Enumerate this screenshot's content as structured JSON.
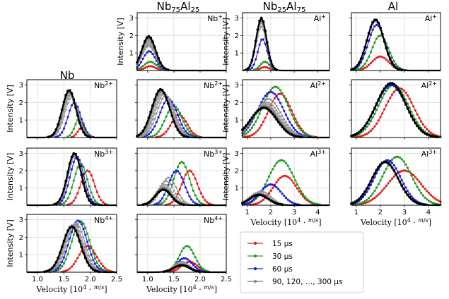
{
  "figure": {
    "columns": [
      "Nb",
      "Nb₇₅Al₂₅",
      "Nb₂₅Al₇₅",
      "Al"
    ],
    "column_titles": [
      {
        "base": "Nb",
        "parts": []
      },
      {
        "base": "Nb",
        "parts": [
          {
            "sub": "75"
          },
          {
            "txt": "Al"
          },
          {
            "sub": "25"
          }
        ]
      },
      {
        "base": "Nb",
        "parts": [
          {
            "sub": "25"
          },
          {
            "txt": "Al"
          },
          {
            "sub": "75"
          }
        ]
      },
      {
        "base": "Al",
        "parts": []
      }
    ],
    "ylabel": "Intensity [V]",
    "xlabel": "Velocity [10⁴ · m/s]",
    "xlabel_parts": {
      "pre": "Velocity [10",
      "exp": "4",
      "mid": " · ",
      "num": "m",
      "den": "s",
      "post": "]"
    },
    "y_ticks": [
      "1",
      "2",
      "3"
    ],
    "x_ticks_nb": [
      "1.0",
      "1.5",
      "2.0",
      "2.5"
    ],
    "x_ticks_al": [
      "1",
      "2",
      "3",
      "4"
    ]
  },
  "legend": {
    "items": [
      {
        "label": "15 µs",
        "color": "#e8191b"
      },
      {
        "label": "30 µs",
        "color": "#239b23"
      },
      {
        "label": "60 µs",
        "color": "#1d1de0"
      },
      {
        "label": "90, 120, …, 300 µs",
        "color": "#8c8c8c"
      }
    ]
  },
  "chart_data": {
    "type": "line",
    "ylim": [
      0,
      3.3
    ],
    "grid": true,
    "series_names": [
      "15 µs",
      "30 µs",
      "60 µs",
      "90 µs",
      "120 µs",
      "150 µs",
      "180 µs",
      "210 µs",
      "240 µs",
      "270 µs",
      "300 µs"
    ],
    "panels": [
      {
        "id": "nbal75-1",
        "column": 1,
        "row": 0,
        "label": "Nb",
        "charge": "+",
        "xlim": [
          0.8,
          2.5
        ],
        "peaks": [
          [
            1.05,
            0.1,
            0.25
          ],
          [
            1.05,
            0.12,
            0.5
          ],
          [
            1.03,
            0.12,
            1.1
          ],
          [
            1.02,
            0.13,
            1.4
          ],
          [
            1.02,
            0.13,
            1.5
          ],
          [
            1.02,
            0.13,
            1.6
          ],
          [
            1.02,
            0.13,
            1.7
          ],
          [
            1.02,
            0.13,
            1.8
          ],
          [
            1.02,
            0.13,
            1.85
          ],
          [
            1.02,
            0.13,
            1.9
          ],
          [
            1.02,
            0.13,
            1.95
          ]
        ]
      },
      {
        "id": "nb25al-1",
        "column": 2,
        "row": 0,
        "label": "Al",
        "charge": "+",
        "xlim": [
          0.8,
          4.5
        ],
        "peaks": [
          [
            1.75,
            0.18,
            0.2
          ],
          [
            1.75,
            0.2,
            0.5
          ],
          [
            1.65,
            0.2,
            1.8
          ],
          [
            1.6,
            0.22,
            2.5
          ],
          [
            1.6,
            0.22,
            2.7
          ],
          [
            1.6,
            0.22,
            2.8
          ],
          [
            1.6,
            0.22,
            2.85
          ],
          [
            1.6,
            0.22,
            2.9
          ],
          [
            1.6,
            0.22,
            2.95
          ],
          [
            1.6,
            0.22,
            2.95
          ],
          [
            1.6,
            0.22,
            3.0
          ]
        ]
      },
      {
        "id": "al-1",
        "column": 3,
        "row": 0,
        "label": "Al",
        "charge": "+",
        "xlim": [
          0.8,
          4.5
        ],
        "peaks": [
          [
            2.0,
            0.35,
            0.8
          ],
          [
            2.0,
            0.35,
            2.0
          ],
          [
            1.85,
            0.35,
            2.6
          ],
          [
            1.8,
            0.35,
            2.8
          ],
          [
            1.8,
            0.35,
            2.85
          ],
          [
            1.8,
            0.35,
            2.85
          ],
          [
            1.8,
            0.35,
            2.9
          ],
          [
            1.8,
            0.35,
            2.9
          ],
          [
            1.8,
            0.35,
            2.9
          ],
          [
            1.8,
            0.35,
            2.9
          ],
          [
            1.8,
            0.35,
            2.9
          ]
        ]
      },
      {
        "id": "nb-2",
        "column": 0,
        "row": 1,
        "label": "Nb",
        "charge": "2+",
        "xlim": [
          0.8,
          2.5
        ],
        "peaks": [
          [
            1.85,
            0.08,
            0.6
          ],
          [
            1.8,
            0.09,
            1.1
          ],
          [
            1.7,
            0.12,
            2.0
          ],
          [
            1.65,
            0.13,
            2.3
          ],
          [
            1.63,
            0.13,
            2.4
          ],
          [
            1.62,
            0.13,
            2.5
          ],
          [
            1.62,
            0.13,
            2.55
          ],
          [
            1.61,
            0.13,
            2.6
          ],
          [
            1.6,
            0.13,
            2.65
          ],
          [
            1.6,
            0.13,
            2.65
          ],
          [
            1.6,
            0.13,
            2.7
          ]
        ]
      },
      {
        "id": "nbal75-2",
        "column": 1,
        "row": 1,
        "label": "Nb",
        "charge": "2+",
        "xlim": [
          0.8,
          2.5
        ],
        "peaks": [
          [
            1.6,
            0.15,
            1.3
          ],
          [
            1.5,
            0.16,
            1.8
          ],
          [
            1.4,
            0.17,
            2.2
          ],
          [
            1.35,
            0.17,
            2.4
          ],
          [
            1.32,
            0.17,
            2.5
          ],
          [
            1.3,
            0.17,
            2.55
          ],
          [
            1.28,
            0.17,
            2.6
          ],
          [
            1.27,
            0.17,
            2.65
          ],
          [
            1.26,
            0.17,
            2.7
          ],
          [
            1.25,
            0.17,
            2.7
          ],
          [
            1.25,
            0.17,
            2.75
          ]
        ]
      },
      {
        "id": "nb25al-2",
        "column": 2,
        "row": 1,
        "label": "Al",
        "charge": "2+",
        "xlim": [
          0.8,
          4.5
        ],
        "peaks": [
          [
            2.4,
            0.5,
            2.5
          ],
          [
            2.2,
            0.55,
            2.9
          ],
          [
            2.0,
            0.55,
            2.6
          ],
          [
            1.9,
            0.55,
            2.2
          ],
          [
            1.85,
            0.55,
            2.0
          ],
          [
            1.8,
            0.55,
            1.9
          ],
          [
            1.8,
            0.55,
            1.8
          ],
          [
            1.75,
            0.55,
            1.8
          ],
          [
            1.75,
            0.55,
            1.75
          ],
          [
            1.75,
            0.55,
            1.7
          ],
          [
            1.7,
            0.55,
            1.7
          ]
        ]
      },
      {
        "id": "al-2",
        "column": 3,
        "row": 1,
        "label": "Al",
        "charge": "2+",
        "xlim": [
          0.8,
          4.5
        ],
        "peaks": [
          [
            2.8,
            0.6,
            2.8
          ],
          [
            2.55,
            0.62,
            3.0
          ],
          [
            2.45,
            0.62,
            3.0
          ],
          [
            2.45,
            0.62,
            3.1
          ],
          [
            2.45,
            0.62,
            3.1
          ],
          [
            2.45,
            0.62,
            3.1
          ],
          [
            2.45,
            0.62,
            3.1
          ],
          [
            2.45,
            0.62,
            3.1
          ],
          [
            2.45,
            0.62,
            3.1
          ],
          [
            2.45,
            0.62,
            3.1
          ],
          [
            2.45,
            0.62,
            3.1
          ]
        ]
      },
      {
        "id": "nb-3",
        "column": 0,
        "row": 2,
        "label": "Nb",
        "charge": "3+",
        "xlim": [
          0.8,
          2.5
        ],
        "peaks": [
          [
            1.95,
            0.13,
            2.0
          ],
          [
            1.82,
            0.13,
            2.4
          ],
          [
            1.75,
            0.13,
            2.8
          ],
          [
            1.72,
            0.13,
            2.9
          ],
          [
            1.71,
            0.13,
            2.95
          ],
          [
            1.7,
            0.13,
            3.0
          ],
          [
            1.7,
            0.13,
            3.0
          ],
          [
            1.7,
            0.13,
            3.0
          ],
          [
            1.7,
            0.13,
            3.0
          ],
          [
            1.7,
            0.13,
            3.0
          ],
          [
            1.7,
            0.13,
            3.0
          ]
        ]
      },
      {
        "id": "nbal75-3",
        "column": 1,
        "row": 2,
        "label": "Nb",
        "charge": "3+",
        "xlim": [
          0.8,
          2.5
        ],
        "peaks": [
          [
            1.8,
            0.15,
            2.0
          ],
          [
            1.65,
            0.15,
            2.5
          ],
          [
            1.55,
            0.15,
            2.0
          ],
          [
            1.4,
            0.15,
            1.6
          ],
          [
            1.35,
            0.15,
            1.4
          ],
          [
            1.32,
            0.15,
            1.2
          ],
          [
            1.3,
            0.15,
            1.1
          ],
          [
            1.3,
            0.15,
            1.0
          ],
          [
            1.3,
            0.15,
            1.0
          ],
          [
            1.3,
            0.15,
            0.9
          ],
          [
            1.3,
            0.15,
            0.9
          ]
        ]
      },
      {
        "id": "nb25al-3",
        "column": 2,
        "row": 2,
        "label": "Al",
        "charge": "3+",
        "xlim": [
          0.8,
          4.5
        ],
        "peaks": [
          [
            2.6,
            0.5,
            1.7
          ],
          [
            2.45,
            0.55,
            2.6
          ],
          [
            2.0,
            0.45,
            1.2
          ],
          [
            1.6,
            0.4,
            0.8
          ],
          [
            1.5,
            0.4,
            0.75
          ],
          [
            1.5,
            0.4,
            0.7
          ],
          [
            1.5,
            0.4,
            0.7
          ],
          [
            1.5,
            0.4,
            0.65
          ],
          [
            1.5,
            0.4,
            0.65
          ],
          [
            1.5,
            0.4,
            0.6
          ],
          [
            1.5,
            0.4,
            0.6
          ]
        ]
      },
      {
        "id": "al-3",
        "column": 3,
        "row": 2,
        "label": "Al",
        "charge": "3+",
        "xlim": [
          0.8,
          4.5
        ],
        "peaks": [
          [
            3.0,
            0.7,
            2.0
          ],
          [
            2.7,
            0.6,
            2.8
          ],
          [
            2.3,
            0.55,
            2.6
          ],
          [
            2.2,
            0.55,
            2.5
          ],
          [
            2.2,
            0.55,
            2.5
          ],
          [
            2.2,
            0.55,
            2.5
          ],
          [
            2.2,
            0.55,
            2.5
          ],
          [
            2.2,
            0.55,
            2.5
          ],
          [
            2.2,
            0.55,
            2.5
          ],
          [
            2.2,
            0.55,
            2.5
          ],
          [
            2.2,
            0.55,
            2.5
          ]
        ]
      },
      {
        "id": "nb-4",
        "column": 0,
        "row": 3,
        "label": "Nb",
        "charge": "4+",
        "xlim": [
          0.8,
          2.5
        ],
        "peaks": [
          [
            1.95,
            0.17,
            1.5
          ],
          [
            1.82,
            0.17,
            2.9
          ],
          [
            1.77,
            0.17,
            2.95
          ],
          [
            1.73,
            0.17,
            2.8
          ],
          [
            1.7,
            0.17,
            2.75
          ],
          [
            1.68,
            0.17,
            2.7
          ],
          [
            1.67,
            0.17,
            2.7
          ],
          [
            1.66,
            0.17,
            2.65
          ],
          [
            1.65,
            0.17,
            2.65
          ],
          [
            1.65,
            0.17,
            2.6
          ],
          [
            1.65,
            0.17,
            2.6
          ]
        ]
      },
      {
        "id": "nbal75-4",
        "column": 1,
        "row": 3,
        "label": "Nb",
        "charge": "4+",
        "xlim": [
          0.8,
          2.5
        ],
        "peaks": [
          [
            1.8,
            0.15,
            0.6
          ],
          [
            1.75,
            0.15,
            1.5
          ],
          [
            1.7,
            0.15,
            0.8
          ],
          [
            1.65,
            0.15,
            0.6
          ],
          [
            1.65,
            0.15,
            0.55
          ],
          [
            1.65,
            0.15,
            0.5
          ],
          [
            1.65,
            0.15,
            0.45
          ],
          [
            1.65,
            0.15,
            0.45
          ],
          [
            1.65,
            0.15,
            0.4
          ],
          [
            1.65,
            0.15,
            0.4
          ],
          [
            1.65,
            0.15,
            0.4
          ]
        ]
      }
    ]
  }
}
